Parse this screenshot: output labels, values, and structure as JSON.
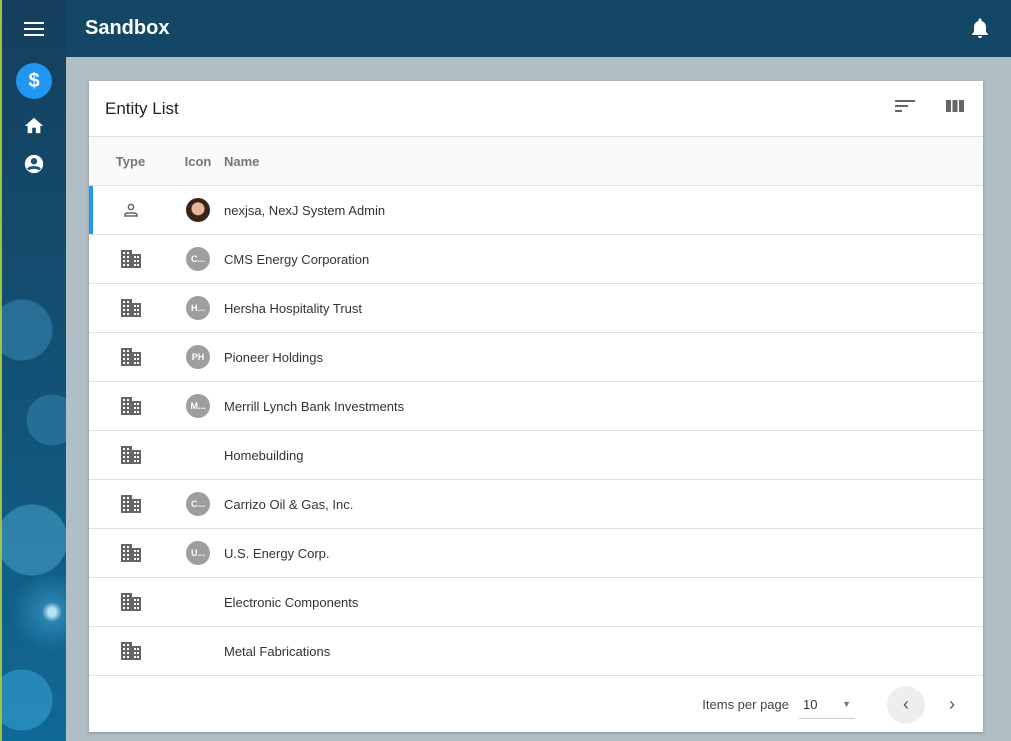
{
  "app": {
    "title": "Sandbox"
  },
  "sidebar": {
    "items": [
      {
        "icon": "menu-icon"
      },
      {
        "icon": "dollar-icon",
        "active": true
      },
      {
        "icon": "home-icon"
      },
      {
        "icon": "account-icon"
      }
    ],
    "accent": "#2196f3"
  },
  "card": {
    "title": "Entity List",
    "tools": [
      "sort-icon",
      "columns-icon"
    ]
  },
  "table": {
    "columns": [
      "Type",
      "Icon",
      "Name"
    ],
    "rows": [
      {
        "type": "person",
        "avatar": "photo",
        "initials": "",
        "name": "nexjsa, NexJ System Admin",
        "selected": true
      },
      {
        "type": "company",
        "avatar": "initials",
        "initials": "C...",
        "name": "CMS Energy Corporation"
      },
      {
        "type": "company",
        "avatar": "initials",
        "initials": "H...",
        "name": "Hersha Hospitality Trust"
      },
      {
        "type": "company",
        "avatar": "initials",
        "initials": "PH",
        "name": "Pioneer Holdings"
      },
      {
        "type": "company",
        "avatar": "initials",
        "initials": "M...",
        "name": "Merrill Lynch Bank Investments"
      },
      {
        "type": "company",
        "avatar": "none",
        "initials": "",
        "name": "Homebuilding"
      },
      {
        "type": "company",
        "avatar": "initials",
        "initials": "C...",
        "name": "Carrizo Oil & Gas, Inc."
      },
      {
        "type": "company",
        "avatar": "initials",
        "initials": "U...",
        "name": "U.S. Energy Corp."
      },
      {
        "type": "company",
        "avatar": "none",
        "initials": "",
        "name": "Electronic Components"
      },
      {
        "type": "company",
        "avatar": "none",
        "initials": "",
        "name": "Metal Fabrications"
      }
    ]
  },
  "pagination": {
    "label": "Items per page",
    "page_size": "10"
  }
}
